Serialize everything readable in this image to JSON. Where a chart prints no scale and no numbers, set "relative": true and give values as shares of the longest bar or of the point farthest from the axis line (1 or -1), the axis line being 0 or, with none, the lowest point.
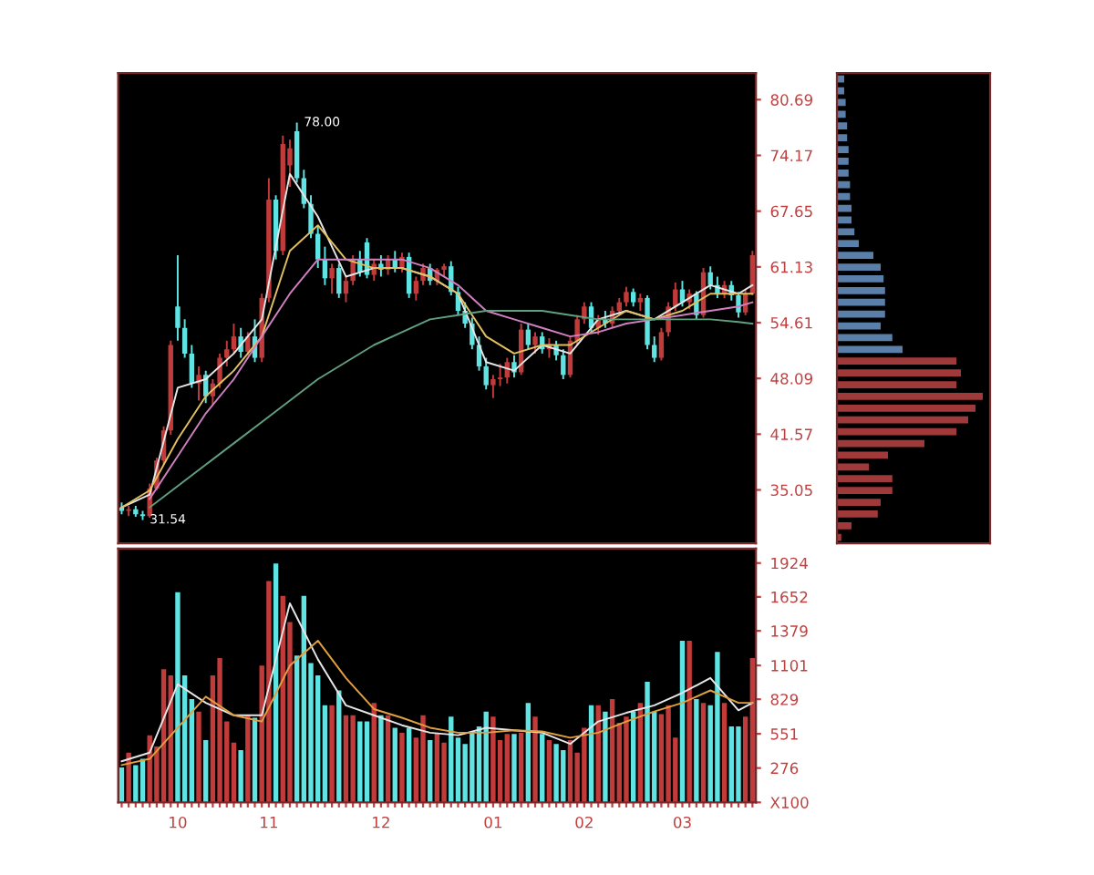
{
  "chart_data": [
    {
      "type": "candlestick",
      "tick_labels": "y",
      "categories": [
        null,
        null,
        null,
        null,
        null,
        null,
        null,
        null,
        null,
        null,
        null,
        null,
        null,
        null,
        null,
        null,
        null,
        null,
        null,
        null,
        null,
        null,
        null,
        null,
        null,
        null,
        null,
        null,
        null,
        null,
        null,
        null,
        null,
        null,
        null,
        null,
        null,
        null,
        null,
        null,
        null,
        null,
        null,
        null,
        null,
        null,
        null,
        null,
        null,
        null,
        null,
        null,
        null,
        null,
        null,
        null,
        null,
        null,
        null,
        null,
        null,
        null,
        null,
        null,
        null,
        null,
        null,
        null,
        null,
        null,
        null,
        null,
        null,
        null,
        null,
        null,
        null,
        null,
        null,
        null,
        null,
        null,
        null,
        null,
        null,
        null,
        null,
        null,
        null,
        null,
        null
      ],
      "ohlc": [
        [
          33.0,
          33.6,
          32.2,
          32.6
        ],
        [
          32.6,
          33.2,
          32.0,
          32.8
        ],
        [
          32.8,
          33.2,
          31.9,
          32.2
        ],
        [
          32.2,
          32.6,
          31.54,
          32.0
        ],
        [
          32.0,
          35.8,
          31.8,
          35.2
        ],
        [
          35.2,
          38.8,
          35.0,
          38.5
        ],
        [
          38.5,
          42.5,
          38.0,
          42.0
        ],
        [
          42.0,
          52.5,
          41.5,
          52.0
        ],
        [
          56.5,
          62.5,
          52.5,
          54.0
        ],
        [
          54.0,
          55.0,
          50.5,
          51.0
        ],
        [
          51.0,
          52.0,
          47.0,
          47.5
        ],
        [
          47.5,
          49.5,
          45.5,
          48.5
        ],
        [
          48.5,
          49.0,
          45.2,
          46.0
        ],
        [
          46.0,
          48.0,
          45.0,
          47.5
        ],
        [
          47.5,
          51.0,
          47.0,
          50.5
        ],
        [
          50.5,
          52.5,
          49.5,
          51.5
        ],
        [
          51.5,
          54.5,
          51.0,
          53.0
        ],
        [
          53.0,
          54.0,
          50.5,
          51.2
        ],
        [
          51.2,
          53.5,
          50.8,
          53.0
        ],
        [
          53.0,
          55.0,
          50.0,
          50.5
        ],
        [
          50.5,
          58.0,
          50.0,
          57.5
        ],
        [
          57.5,
          71.5,
          57.0,
          69.0
        ],
        [
          69.0,
          69.5,
          62.0,
          63.0
        ],
        [
          63.0,
          76.5,
          62.5,
          75.5
        ],
        [
          73.0,
          76.0,
          70.5,
          75.0
        ],
        [
          77.0,
          78.0,
          71.0,
          71.5
        ],
        [
          71.5,
          72.5,
          68.0,
          68.5
        ],
        [
          68.5,
          69.5,
          64.5,
          65.0
        ],
        [
          65.0,
          66.0,
          61.0,
          62.0
        ],
        [
          62.0,
          63.5,
          59.0,
          59.8
        ],
        [
          59.8,
          61.5,
          58.0,
          61.0
        ],
        [
          61.0,
          61.5,
          57.5,
          58.0
        ],
        [
          58.0,
          60.0,
          57.0,
          59.5
        ],
        [
          59.5,
          62.5,
          59.0,
          62.0
        ],
        [
          62.0,
          63.0,
          60.0,
          60.5
        ],
        [
          64.0,
          64.5,
          59.8,
          60.2
        ],
        [
          60.2,
          62.0,
          59.5,
          61.5
        ],
        [
          61.5,
          62.5,
          60.0,
          60.8
        ],
        [
          60.8,
          62.5,
          60.2,
          62.0
        ],
        [
          62.0,
          63.0,
          60.5,
          61.0
        ],
        [
          61.0,
          62.8,
          60.5,
          62.3
        ],
        [
          62.3,
          62.8,
          57.5,
          58.0
        ],
        [
          58.0,
          60.0,
          57.2,
          59.5
        ],
        [
          59.5,
          61.5,
          59.0,
          61.0
        ],
        [
          61.0,
          61.5,
          59.0,
          59.5
        ],
        [
          59.5,
          61.0,
          59.0,
          60.8
        ],
        [
          60.8,
          61.5,
          60.0,
          61.2
        ],
        [
          61.2,
          61.8,
          57.8,
          58.2
        ],
        [
          58.2,
          58.8,
          55.5,
          56.0
        ],
        [
          56.0,
          57.0,
          54.0,
          54.5
        ],
        [
          54.5,
          55.2,
          51.5,
          52.0
        ],
        [
          52.0,
          53.0,
          49.0,
          49.5
        ],
        [
          49.5,
          50.5,
          46.8,
          47.3
        ],
        [
          47.3,
          48.5,
          45.8,
          48.0
        ],
        [
          48.0,
          49.8,
          47.2,
          48.2
        ],
        [
          48.2,
          50.5,
          47.5,
          50.0
        ],
        [
          50.0,
          50.8,
          48.2,
          48.8
        ],
        [
          48.8,
          54.5,
          48.5,
          53.8
        ],
        [
          53.8,
          54.5,
          51.5,
          52.0
        ],
        [
          52.0,
          53.5,
          51.0,
          53.0
        ],
        [
          53.0,
          53.5,
          51.0,
          51.5
        ],
        [
          51.5,
          52.8,
          50.5,
          52.0
        ],
        [
          52.0,
          52.5,
          50.2,
          50.8
        ],
        [
          50.8,
          51.5,
          48.0,
          48.5
        ],
        [
          48.5,
          53.0,
          48.2,
          52.5
        ],
        [
          52.5,
          55.5,
          52.0,
          55.0
        ],
        [
          55.0,
          57.0,
          54.5,
          56.5
        ],
        [
          56.5,
          57.0,
          53.5,
          54.0
        ],
        [
          54.0,
          55.5,
          53.2,
          55.0
        ],
        [
          55.0,
          56.0,
          54.0,
          54.5
        ],
        [
          54.5,
          56.5,
          54.0,
          56.0
        ],
        [
          56.0,
          57.5,
          55.5,
          57.0
        ],
        [
          57.0,
          58.8,
          56.5,
          58.2
        ],
        [
          58.2,
          58.6,
          56.5,
          57.0
        ],
        [
          57.0,
          58.0,
          56.0,
          57.5
        ],
        [
          57.5,
          57.8,
          51.5,
          52.0
        ],
        [
          52.0,
          53.0,
          50.0,
          50.5
        ],
        [
          50.5,
          54.0,
          50.2,
          53.5
        ],
        [
          53.5,
          57.0,
          53.0,
          56.5
        ],
        [
          56.5,
          59.3,
          56.0,
          58.5
        ],
        [
          58.5,
          59.5,
          56.5,
          57.0
        ],
        [
          57.0,
          58.5,
          56.2,
          58.0
        ],
        [
          58.0,
          58.3,
          55.0,
          55.5
        ],
        [
          55.5,
          61.0,
          55.2,
          60.5
        ],
        [
          60.5,
          61.2,
          58.5,
          59.0
        ],
        [
          59.0,
          60.0,
          57.5,
          58.0
        ],
        [
          58.0,
          59.5,
          57.5,
          59.0
        ],
        [
          59.0,
          59.5,
          57.2,
          57.8
        ],
        [
          57.8,
          58.2,
          55.2,
          55.8
        ],
        [
          55.8,
          58.5,
          55.5,
          58.0
        ],
        [
          58.0,
          63.0,
          57.8,
          62.5
        ]
      ],
      "colors": [
        "#5fe3e3",
        "#c23b3b",
        "#5fe3e3",
        "#5fe3e3",
        "#c23b3b",
        "#c23b3b",
        "#c23b3b",
        "#c23b3b",
        "#5fe3e3",
        "#5fe3e3",
        "#5fe3e3",
        "#c23b3b",
        "#5fe3e3",
        "#c23b3b",
        "#c23b3b",
        "#c23b3b",
        "#c23b3b",
        "#5fe3e3",
        "#c23b3b",
        "#5fe3e3",
        "#c23b3b",
        "#c23b3b",
        "#5fe3e3",
        "#c23b3b",
        "#c23b3b",
        "#5fe3e3",
        "#5fe3e3",
        "#5fe3e3",
        "#5fe3e3",
        "#5fe3e3",
        "#c23b3b",
        "#5fe3e3",
        "#c23b3b",
        "#c23b3b",
        "#5fe3e3",
        "#5fe3e3",
        "#c23b3b",
        "#5fe3e3",
        "#c23b3b",
        "#5fe3e3",
        "#c23b3b",
        "#5fe3e3",
        "#c23b3b",
        "#c23b3b",
        "#5fe3e3",
        "#c23b3b",
        "#c23b3b",
        "#5fe3e3",
        "#5fe3e3",
        "#5fe3e3",
        "#5fe3e3",
        "#5fe3e3",
        "#5fe3e3",
        "#c23b3b",
        "#c23b3b",
        "#c23b3b",
        "#5fe3e3",
        "#c23b3b",
        "#5fe3e3",
        "#c23b3b",
        "#5fe3e3",
        "#c23b3b",
        "#5fe3e3",
        "#5fe3e3",
        "#c23b3b",
        "#c23b3b",
        "#c23b3b",
        "#5fe3e3",
        "#c23b3b",
        "#5fe3e3",
        "#c23b3b",
        "#c23b3b",
        "#c23b3b",
        "#5fe3e3",
        "#c23b3b",
        "#5fe3e3",
        "#5fe3e3",
        "#c23b3b",
        "#c23b3b",
        "#c23b3b",
        "#5fe3e3",
        "#c23b3b",
        "#5fe3e3",
        "#c23b3b",
        "#5fe3e3",
        "#5fe3e3",
        "#c23b3b",
        "#5fe3e3",
        "#5fe3e3",
        "#c23b3b",
        "#c23b3b"
      ],
      "series": [
        {
          "type": "line",
          "color": "#e6e6e6",
          "values": [
            33,
            null,
            null,
            null,
            34.5,
            null,
            null,
            null,
            47,
            null,
            null,
            null,
            48,
            null,
            null,
            null,
            51,
            null,
            null,
            null,
            55,
            null,
            null,
            null,
            72,
            null,
            null,
            null,
            67,
            null,
            null,
            null,
            60,
            null,
            null,
            null,
            61,
            null,
            null,
            null,
            61,
            null,
            null,
            null,
            60,
            null,
            null,
            null,
            58,
            null,
            null,
            null,
            50,
            null,
            null,
            null,
            49,
            null,
            null,
            null,
            52,
            null,
            null,
            null,
            51,
            null,
            null,
            null,
            55,
            null,
            null,
            null,
            56,
            null,
            null,
            null,
            55,
            null,
            null,
            null,
            57,
            null,
            null,
            null,
            59,
            null,
            null,
            null,
            58,
            null,
            59
          ]
        },
        {
          "type": "line",
          "color": "#e0c060",
          "values": [
            33,
            null,
            null,
            null,
            35,
            null,
            null,
            null,
            41,
            null,
            null,
            null,
            46,
            null,
            null,
            null,
            49,
            null,
            null,
            null,
            53,
            null,
            null,
            null,
            63,
            null,
            null,
            null,
            66,
            null,
            null,
            null,
            62,
            null,
            null,
            null,
            61,
            null,
            null,
            null,
            61,
            null,
            null,
            null,
            60,
            null,
            null,
            null,
            58,
            null,
            null,
            null,
            53,
            null,
            null,
            null,
            51,
            null,
            null,
            null,
            52,
            null,
            null,
            null,
            52,
            null,
            null,
            null,
            54,
            null,
            null,
            null,
            56,
            null,
            null,
            null,
            55,
            null,
            null,
            null,
            56,
            null,
            null,
            null,
            58,
            null,
            null,
            null,
            58,
            null,
            58
          ]
        },
        {
          "type": "line",
          "color": "#d080c0",
          "values": [
            null,
            null,
            null,
            null,
            34,
            null,
            null,
            null,
            39,
            null,
            null,
            null,
            44,
            null,
            null,
            null,
            48,
            null,
            null,
            null,
            53,
            null,
            null,
            null,
            58,
            null,
            null,
            null,
            62,
            null,
            null,
            null,
            62,
            null,
            null,
            null,
            62,
            null,
            null,
            null,
            62,
            null,
            null,
            null,
            61,
            null,
            null,
            null,
            59,
            null,
            null,
            null,
            56,
            null,
            null,
            null,
            55,
            null,
            null,
            null,
            54,
            null,
            null,
            null,
            53,
            null,
            null,
            null,
            53.5,
            null,
            null,
            null,
            54.5,
            null,
            null,
            null,
            55,
            null,
            null,
            null,
            55.5,
            null,
            null,
            null,
            56,
            null,
            null,
            null,
            56.5,
            null,
            57
          ]
        },
        {
          "type": "line",
          "color": "#60a080",
          "values": [
            null,
            null,
            null,
            null,
            33,
            null,
            null,
            null,
            35.5,
            null,
            null,
            null,
            38,
            null,
            null,
            null,
            40.5,
            null,
            null,
            null,
            43,
            null,
            null,
            null,
            45.5,
            null,
            null,
            null,
            48,
            null,
            null,
            null,
            50,
            null,
            null,
            null,
            52,
            null,
            null,
            null,
            53.5,
            null,
            null,
            null,
            55,
            null,
            null,
            null,
            55.5,
            null,
            null,
            null,
            56,
            null,
            null,
            null,
            56,
            null,
            null,
            null,
            56,
            null,
            null,
            null,
            55.5,
            null,
            null,
            null,
            55,
            null,
            null,
            null,
            55,
            null,
            null,
            null,
            55,
            null,
            null,
            null,
            55,
            null,
            null,
            null,
            55,
            null,
            null,
            null,
            54.7,
            null,
            54.5
          ]
        }
      ],
      "ylim": [
        28.8,
        83.8
      ],
      "yticks": [
        80.69,
        74.17,
        67.65,
        61.13,
        54.61,
        48.09,
        41.57,
        35.05
      ],
      "annotations": [
        "78.00",
        "31.54"
      ]
    },
    {
      "type": "bar",
      "categories": [
        null,
        null,
        null,
        null,
        null,
        null,
        null,
        null,
        "10",
        null,
        null,
        null,
        null,
        null,
        null,
        null,
        null,
        null,
        null,
        null,
        null,
        "11",
        null,
        null,
        null,
        null,
        null,
        null,
        null,
        null,
        null,
        null,
        null,
        null,
        null,
        null,
        null,
        "12",
        null,
        null,
        null,
        null,
        null,
        null,
        null,
        null,
        null,
        null,
        null,
        null,
        null,
        null,
        null,
        "01",
        null,
        null,
        null,
        null,
        null,
        null,
        null,
        null,
        null,
        null,
        null,
        null,
        "02",
        null,
        null,
        null,
        null,
        null,
        null,
        null,
        null,
        null,
        null,
        null,
        null,
        null,
        "03",
        null,
        null,
        null,
        null,
        null,
        null,
        null,
        null,
        null,
        null
      ],
      "values": [
        280,
        400,
        300,
        350,
        540,
        450,
        1070,
        1020,
        1690,
        1020,
        830,
        730,
        500,
        1020,
        1160,
        650,
        480,
        420,
        700,
        680,
        1100,
        1780,
        1920,
        1660,
        1450,
        1180,
        1660,
        1120,
        1020,
        780,
        780,
        900,
        700,
        700,
        650,
        650,
        800,
        700,
        700,
        600,
        560,
        600,
        520,
        700,
        500,
        560,
        480,
        690,
        520,
        470,
        560,
        610,
        730,
        690,
        500,
        550,
        550,
        560,
        800,
        690,
        550,
        500,
        470,
        420,
        500,
        400,
        600,
        780,
        780,
        730,
        830,
        640,
        690,
        730,
        800,
        970,
        730,
        710,
        780,
        520,
        1300,
        1300,
        830,
        800,
        780,
        1210,
        800,
        610,
        610,
        690,
        1160
      ],
      "colors": [
        "#5fe3e3",
        "#c23b3b",
        "#5fe3e3",
        "#5fe3e3",
        "#c23b3b",
        "#c23b3b",
        "#c23b3b",
        "#c23b3b",
        "#5fe3e3",
        "#5fe3e3",
        "#5fe3e3",
        "#c23b3b",
        "#5fe3e3",
        "#c23b3b",
        "#c23b3b",
        "#c23b3b",
        "#c23b3b",
        "#5fe3e3",
        "#c23b3b",
        "#5fe3e3",
        "#c23b3b",
        "#c23b3b",
        "#5fe3e3",
        "#c23b3b",
        "#c23b3b",
        "#5fe3e3",
        "#5fe3e3",
        "#5fe3e3",
        "#5fe3e3",
        "#5fe3e3",
        "#c23b3b",
        "#5fe3e3",
        "#c23b3b",
        "#c23b3b",
        "#5fe3e3",
        "#5fe3e3",
        "#c23b3b",
        "#5fe3e3",
        "#c23b3b",
        "#5fe3e3",
        "#c23b3b",
        "#5fe3e3",
        "#c23b3b",
        "#c23b3b",
        "#5fe3e3",
        "#c23b3b",
        "#c23b3b",
        "#5fe3e3",
        "#5fe3e3",
        "#5fe3e3",
        "#5fe3e3",
        "#5fe3e3",
        "#5fe3e3",
        "#c23b3b",
        "#c23b3b",
        "#c23b3b",
        "#5fe3e3",
        "#c23b3b",
        "#5fe3e3",
        "#c23b3b",
        "#5fe3e3",
        "#c23b3b",
        "#5fe3e3",
        "#5fe3e3",
        "#c23b3b",
        "#c23b3b",
        "#c23b3b",
        "#5fe3e3",
        "#c23b3b",
        "#5fe3e3",
        "#c23b3b",
        "#c23b3b",
        "#c23b3b",
        "#5fe3e3",
        "#c23b3b",
        "#5fe3e3",
        "#5fe3e3",
        "#c23b3b",
        "#c23b3b",
        "#c23b3b",
        "#5fe3e3",
        "#c23b3b",
        "#5fe3e3",
        "#c23b3b",
        "#5fe3e3",
        "#5fe3e3",
        "#c23b3b",
        "#5fe3e3",
        "#5fe3e3",
        "#c23b3b",
        "#c23b3b"
      ],
      "series": [
        {
          "type": "line",
          "color": "#e6e6e6",
          "values": [
            330,
            null,
            null,
            null,
            400,
            null,
            null,
            null,
            950,
            null,
            null,
            null,
            800,
            null,
            null,
            null,
            700,
            null,
            null,
            null,
            700,
            null,
            null,
            null,
            1600,
            null,
            null,
            null,
            1150,
            null,
            null,
            null,
            780,
            null,
            null,
            null,
            700,
            null,
            null,
            null,
            620,
            null,
            null,
            null,
            560,
            null,
            null,
            null,
            540,
            null,
            null,
            null,
            600,
            null,
            null,
            null,
            580,
            null,
            null,
            null,
            560,
            null,
            null,
            null,
            470,
            null,
            null,
            null,
            650,
            null,
            null,
            null,
            720,
            null,
            null,
            null,
            780,
            null,
            null,
            null,
            880,
            null,
            null,
            null,
            1000,
            null,
            null,
            null,
            740,
            null,
            800
          ]
        },
        {
          "type": "line",
          "color": "#e0a040",
          "values": [
            300,
            null,
            null,
            null,
            350,
            null,
            null,
            null,
            600,
            null,
            null,
            null,
            850,
            null,
            null,
            null,
            700,
            null,
            null,
            null,
            650,
            null,
            null,
            null,
            1100,
            null,
            null,
            null,
            1300,
            null,
            null,
            null,
            1000,
            null,
            null,
            null,
            750,
            null,
            null,
            null,
            680,
            null,
            null,
            null,
            600,
            null,
            null,
            null,
            560,
            null,
            null,
            null,
            560,
            null,
            null,
            null,
            580,
            null,
            null,
            null,
            570,
            null,
            null,
            null,
            520,
            null,
            null,
            null,
            560,
            null,
            null,
            null,
            650,
            null,
            null,
            null,
            730,
            null,
            null,
            null,
            800,
            null,
            null,
            null,
            900,
            null,
            null,
            null,
            800,
            null,
            800
          ]
        }
      ],
      "ylim": [
        0,
        2040
      ],
      "yticks": [
        {
          "value": 0,
          "label": "X100"
        },
        276,
        551,
        829,
        1101,
        1379,
        1652,
        1924
      ]
    },
    {
      "type": "bar",
      "orientation": "horizontal",
      "relative": true,
      "categories": [
        null,
        null,
        null,
        null,
        null,
        null,
        null,
        null,
        null,
        null,
        null,
        null,
        null,
        null,
        null,
        null,
        null,
        null,
        null,
        null,
        null,
        null,
        null,
        null,
        null,
        null,
        null,
        null,
        null,
        null,
        null,
        null,
        null,
        null,
        null,
        null,
        null,
        null,
        null,
        null
      ],
      "values": [
        0.05,
        0.05,
        0.06,
        0.06,
        0.07,
        0.07,
        0.08,
        0.08,
        0.08,
        0.09,
        0.09,
        0.1,
        0.1,
        0.12,
        0.15,
        0.25,
        0.3,
        0.32,
        0.33,
        0.33,
        0.33,
        0.3,
        0.38,
        0.45,
        0.82,
        0.85,
        0.82,
        1.0,
        0.95,
        0.9,
        0.82,
        0.6,
        0.35,
        0.22,
        0.38,
        0.38,
        0.3,
        0.28,
        0.1,
        0.03
      ],
      "colors": [
        "#5a7fa8",
        "#5a7fa8",
        "#5a7fa8",
        "#5a7fa8",
        "#5a7fa8",
        "#5a7fa8",
        "#5a7fa8",
        "#5a7fa8",
        "#5a7fa8",
        "#5a7fa8",
        "#5a7fa8",
        "#5a7fa8",
        "#5a7fa8",
        "#5a7fa8",
        "#5a7fa8",
        "#5a7fa8",
        "#5a7fa8",
        "#5a7fa8",
        "#5a7fa8",
        "#5a7fa8",
        "#5a7fa8",
        "#5a7fa8",
        "#5a7fa8",
        "#5a7fa8",
        "#a03a3a",
        "#a03a3a",
        "#a03a3a",
        "#a03a3a",
        "#a03a3a",
        "#a03a3a",
        "#a03a3a",
        "#a03a3a",
        "#a03a3a",
        "#a03a3a",
        "#a03a3a",
        "#a03a3a",
        "#a03a3a",
        "#a03a3a",
        "#a03a3a",
        "#a03a3a"
      ]
    }
  ]
}
